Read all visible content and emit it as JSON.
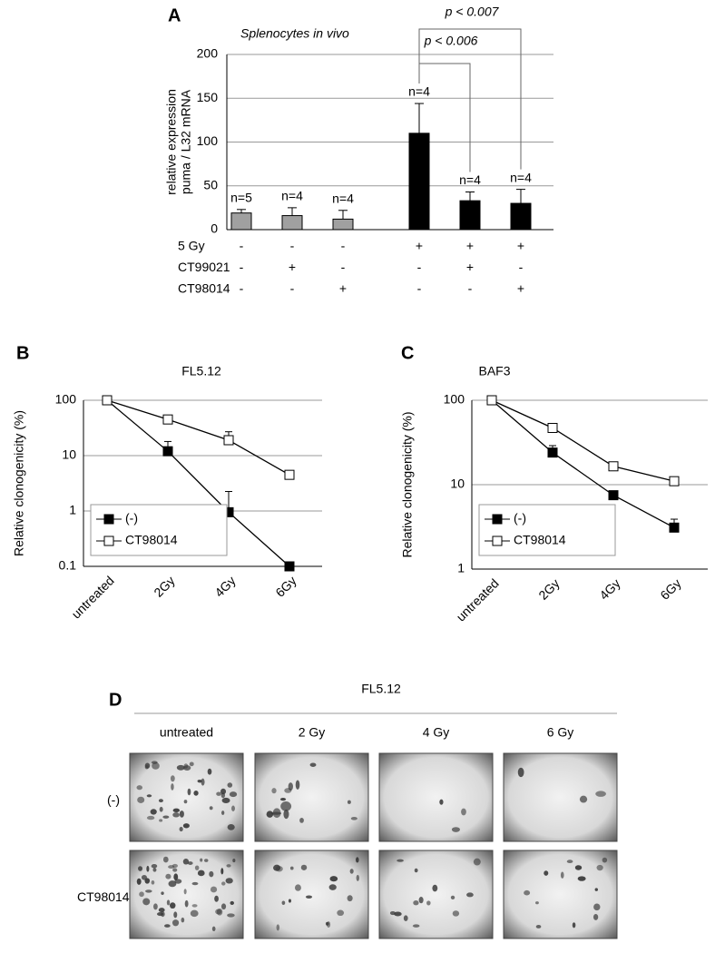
{
  "chart_data": [
    {
      "type": "bar",
      "panel_label": "A",
      "subtitle": "Splenocytes in vivo",
      "ylabel": [
        "relative expression",
        "puma / L32 mRNA"
      ],
      "categories": [
        null,
        null,
        null,
        null,
        null,
        null
      ],
      "values": [
        19,
        16,
        12,
        110,
        33,
        30
      ],
      "errors": [
        4,
        9,
        10,
        34,
        10,
        16
      ],
      "colors": [
        "#a0a0a0",
        "#a0a0a0",
        "#a0a0a0",
        "#000000",
        "#000000",
        "#000000"
      ],
      "annotations": [
        "n=5",
        "n=4",
        "n=4",
        "n=4",
        "n=4",
        "n=4"
      ],
      "ylim": [
        0,
        200
      ],
      "yticks": [
        0,
        50,
        100,
        150,
        200
      ],
      "grid": true,
      "treatments": [
        {
          "name": "5 Gy",
          "signs": [
            "-",
            "-",
            "-",
            "+",
            "+",
            "+"
          ]
        },
        {
          "name": "CT99021",
          "signs": [
            "-",
            "+",
            "-",
            "-",
            "+",
            "-"
          ]
        },
        {
          "name": "CT98014",
          "signs": [
            "-",
            "-",
            "+",
            "-",
            "-",
            "+"
          ]
        }
      ],
      "comparisons": [
        {
          "label": "p < 0.006",
          "from": 3,
          "to": 4
        },
        {
          "label": "p < 0.007",
          "from": 3,
          "to": 5
        }
      ]
    },
    {
      "type": "line",
      "panel_label": "B",
      "title": "FL5.12",
      "ylabel": "Relative clonogenicity (%)",
      "categories": [
        "untreated",
        "2Gy",
        "4Gy",
        "6Gy"
      ],
      "log_y": true,
      "ylim": [
        0.1,
        100
      ],
      "yticks": [
        0.1,
        1,
        10,
        100
      ],
      "grid": true,
      "legend": "lower left",
      "series": [
        {
          "name": "(-)",
          "color": "#000000",
          "marker": "filled-square",
          "values": [
            100,
            12,
            0.95,
            0.1
          ],
          "errors": [
            null,
            6,
            1.3,
            null
          ]
        },
        {
          "name": "CT98014",
          "color": "#000000",
          "marker": "open-square",
          "values": [
            100,
            45,
            19,
            4.5
          ],
          "errors": [
            null,
            null,
            8,
            null
          ]
        }
      ]
    },
    {
      "type": "line",
      "panel_label": "C",
      "title": "BAF3",
      "ylabel": "Relative clonogenicity (%)",
      "categories": [
        "untreated",
        "2Gy",
        "4Gy",
        "6Gy"
      ],
      "log_y": true,
      "ylim": [
        1,
        100
      ],
      "yticks": [
        1,
        10,
        100
      ],
      "grid": true,
      "legend": "lower left",
      "series": [
        {
          "name": "(-)",
          "color": "#000000",
          "marker": "filled-square",
          "values": [
            100,
            24,
            7.5,
            3.1
          ],
          "errors": [
            null,
            5,
            null,
            0.8
          ]
        },
        {
          "name": "CT98014",
          "color": "#000000",
          "marker": "open-square",
          "values": [
            100,
            47,
            16.5,
            11
          ],
          "errors": [
            null,
            null,
            null,
            null
          ]
        }
      ]
    }
  ],
  "panel_d": {
    "panel_label": "D",
    "title": "FL5.12",
    "columns": [
      "untreated",
      "2 Gy",
      "4 Gy",
      "6 Gy"
    ],
    "rows": [
      "(-)",
      "CT98014"
    ]
  }
}
